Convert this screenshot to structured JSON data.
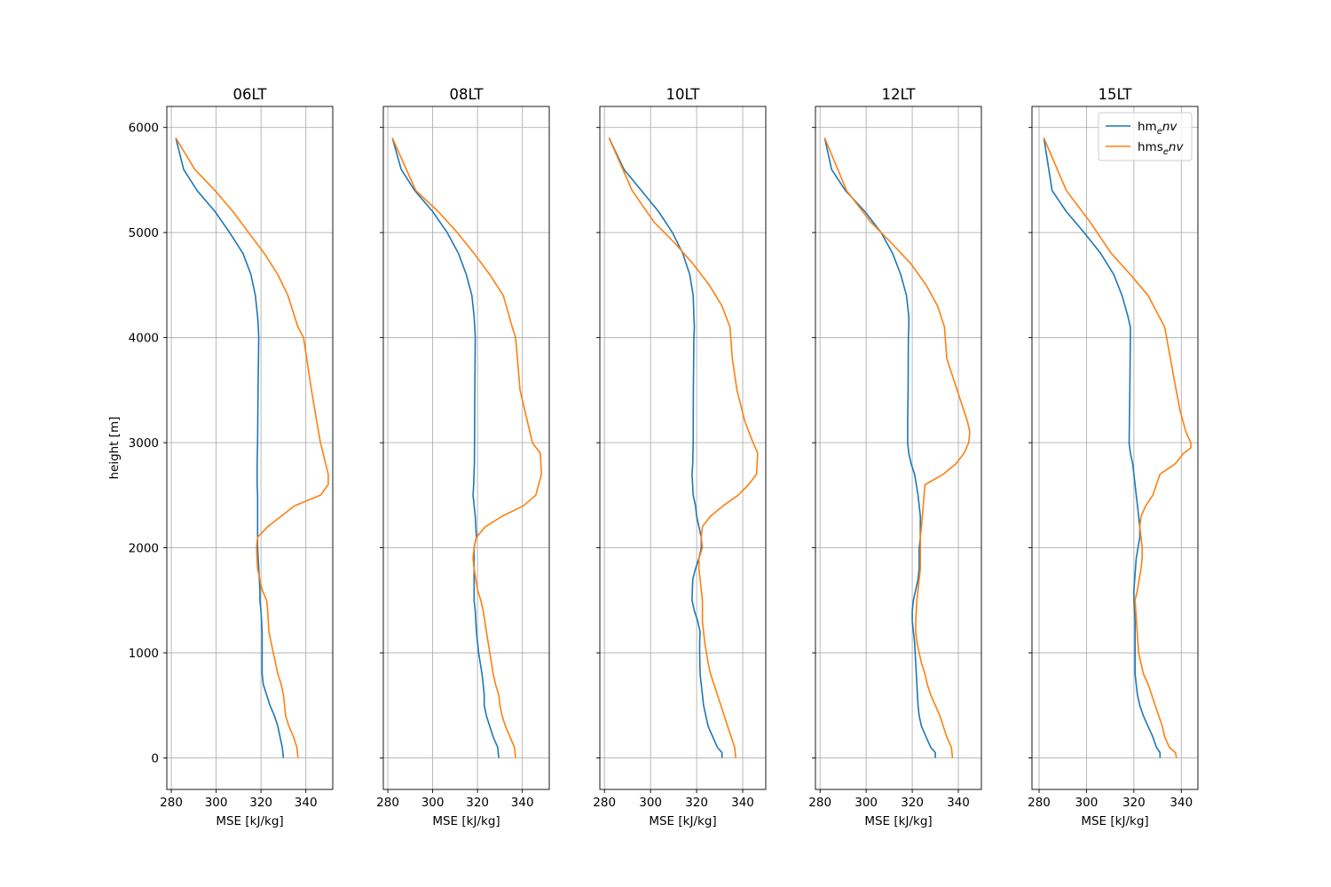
{
  "chart_data": [
    {
      "type": "line",
      "title": "06LT",
      "xlabel": "MSE [kJ/kg]",
      "ylabel": "height [m]",
      "xlim": [
        278,
        352
      ],
      "ylim": [
        -300,
        6200
      ],
      "xticks": [
        280,
        300,
        320,
        340
      ],
      "yticks": [
        0,
        1000,
        2000,
        3000,
        4000,
        5000,
        6000
      ],
      "grid": true,
      "series": [
        {
          "name": "hm_env",
          "color": "#1f77b4",
          "x": [
            330,
            329.5,
            328.5,
            327.5,
            326,
            324,
            322.5,
            321,
            320.5,
            320.5,
            320.5,
            320,
            319.5,
            319.5,
            319,
            318.5,
            318.5,
            318.5,
            318.5,
            318.5,
            318.3,
            318.3,
            318.5,
            318.7,
            319,
            318.8,
            318.5,
            317.5,
            315.5,
            312,
            306,
            299.5,
            291.5,
            285.5,
            282
          ],
          "y": [
            0,
            100,
            200,
            300,
            400,
            500,
            600,
            700,
            800,
            1000,
            1200,
            1400,
            1500,
            1600,
            1800,
            2000,
            2100,
            2200,
            2400,
            2500,
            2600,
            2800,
            3000,
            3500,
            4000,
            4100,
            4200,
            4400,
            4600,
            4800,
            5000,
            5200,
            5400,
            5600,
            5900
          ]
        },
        {
          "name": "hms_env",
          "color": "#ff7f0e",
          "x": [
            336.5,
            336,
            334.5,
            332.5,
            331,
            330.5,
            330,
            329,
            327.5,
            325.5,
            323.5,
            323,
            322.5,
            320.5,
            318.5,
            318,
            318.5,
            323,
            335,
            346.5,
            350,
            350,
            346.5,
            342.5,
            339,
            336.5,
            335,
            332,
            327.5,
            321.5,
            314.5,
            307.5,
            299.5,
            290.5,
            282
          ],
          "y": [
            0,
            100,
            200,
            300,
            400,
            500,
            600,
            700,
            800,
            1000,
            1200,
            1400,
            1500,
            1600,
            1800,
            2000,
            2100,
            2200,
            2400,
            2500,
            2600,
            2700,
            3000,
            3500,
            4000,
            4100,
            4200,
            4400,
            4600,
            4800,
            5000,
            5200,
            5400,
            5600,
            5900
          ]
        }
      ]
    },
    {
      "type": "line",
      "title": "08LT",
      "xlabel": "MSE [kJ/kg]",
      "ylabel": "",
      "xlim": [
        278,
        352
      ],
      "ylim": [
        -300,
        6200
      ],
      "xticks": [
        280,
        300,
        320,
        340
      ],
      "yticks": [
        0,
        1000,
        2000,
        3000,
        4000,
        5000,
        6000
      ],
      "grid": true,
      "series": [
        {
          "name": "hm_env",
          "color": "#1f77b4",
          "x": [
            329.5,
            329,
            327,
            325.5,
            324,
            323,
            323,
            322.5,
            322,
            320.5,
            319.5,
            319,
            318.5,
            318.5,
            318.5,
            318.5,
            318.5,
            319.5,
            319,
            318,
            318.3,
            318.6,
            318.7,
            318.8,
            319,
            318.8,
            318.5,
            317.5,
            315,
            311.5,
            306.5,
            300,
            292,
            286,
            282
          ],
          "y": [
            0,
            100,
            200,
            300,
            400,
            500,
            600,
            700,
            800,
            1000,
            1200,
            1400,
            1500,
            1600,
            1800,
            1900,
            2000,
            2100,
            2300,
            2500,
            2600,
            2800,
            3000,
            3500,
            4000,
            4100,
            4200,
            4400,
            4600,
            4800,
            5000,
            5200,
            5400,
            5600,
            5900
          ]
        },
        {
          "name": "hms_env",
          "color": "#ff7f0e",
          "x": [
            337,
            336.5,
            334.5,
            332.5,
            331,
            330,
            329.5,
            328,
            327,
            325.5,
            324,
            322.5,
            321.5,
            320,
            318.5,
            318,
            318.5,
            319.5,
            323.5,
            331,
            340.5,
            346,
            348.5,
            348,
            344.5,
            339,
            337,
            335.5,
            331.5,
            325.5,
            318.5,
            311,
            302.5,
            292.5,
            282
          ],
          "y": [
            0,
            100,
            200,
            300,
            400,
            500,
            600,
            700,
            800,
            1000,
            1200,
            1400,
            1500,
            1600,
            1800,
            1900,
            2000,
            2100,
            2200,
            2300,
            2400,
            2500,
            2700,
            2900,
            3000,
            3500,
            4000,
            4100,
            4400,
            4600,
            4800,
            5000,
            5200,
            5400,
            5900
          ]
        }
      ]
    },
    {
      "type": "line",
      "title": "10LT",
      "xlabel": "MSE [kJ/kg]",
      "ylabel": "",
      "xlim": [
        278,
        350
      ],
      "ylim": [
        -300,
        6200
      ],
      "xticks": [
        280,
        300,
        320,
        340
      ],
      "yticks": [
        0,
        1000,
        2000,
        3000,
        4000,
        5000,
        6000
      ],
      "grid": true,
      "series": [
        {
          "name": "hm_env",
          "color": "#1f77b4",
          "x": [
            331,
            331,
            329,
            327,
            325,
            324,
            323,
            322.5,
            322,
            321.5,
            321.3,
            321.3,
            321.5,
            320.5,
            319,
            318,
            318.3,
            319.5,
            321,
            322,
            322,
            321,
            320,
            319.5,
            318.5,
            318,
            318.3,
            318.5,
            318.6,
            318.8,
            319,
            318.8,
            318.5,
            317,
            314,
            309.5,
            303.5,
            296,
            288.5,
            282
          ],
          "y": [
            0,
            50,
            100,
            200,
            300,
            400,
            500,
            600,
            700,
            800,
            1000,
            1100,
            1200,
            1300,
            1400,
            1500,
            1700,
            1800,
            1900,
            2000,
            2100,
            2200,
            2300,
            2400,
            2500,
            2700,
            2800,
            3000,
            3500,
            4000,
            4100,
            4200,
            4400,
            4600,
            4800,
            5000,
            5200,
            5400,
            5600,
            5900
          ]
        },
        {
          "name": "hms_env",
          "color": "#ff7f0e",
          "x": [
            337,
            336.5,
            335,
            333.5,
            332,
            330.5,
            329,
            327.5,
            326,
            325,
            323.5,
            322.5,
            322.5,
            322,
            321,
            321,
            322.5,
            322,
            322.5,
            326,
            331.5,
            338,
            342.5,
            346,
            346.5,
            344.5,
            341,
            337.5,
            335.5,
            334.5,
            331,
            325.5,
            318.5,
            310.5,
            301.5,
            292,
            282
          ],
          "y": [
            0,
            100,
            200,
            300,
            400,
            500,
            600,
            700,
            800,
            900,
            1100,
            1300,
            1500,
            1600,
            1800,
            1900,
            2000,
            2100,
            2200,
            2300,
            2400,
            2500,
            2600,
            2700,
            2900,
            3000,
            3200,
            3500,
            3800,
            4100,
            4300,
            4500,
            4700,
            4900,
            5100,
            5400,
            5900
          ]
        }
      ]
    },
    {
      "type": "line",
      "title": "12LT",
      "xlabel": "MSE [kJ/kg]",
      "ylabel": "",
      "xlim": [
        278,
        350
      ],
      "ylim": [
        -300,
        6200
      ],
      "xticks": [
        280,
        300,
        320,
        340
      ],
      "yticks": [
        0,
        1000,
        2000,
        3000,
        4000,
        5000,
        6000
      ],
      "grid": true,
      "series": [
        {
          "name": "hm_env",
          "color": "#1f77b4",
          "x": [
            330,
            330,
            328,
            326,
            324,
            323,
            322.5,
            322,
            321.5,
            321,
            320.5,
            320,
            320,
            320.5,
            321.5,
            322.5,
            323,
            323,
            323,
            323.5,
            323.5,
            322.5,
            321,
            319.5,
            318.5,
            318,
            318,
            318.2,
            318.3,
            318.5,
            318.5,
            317.5,
            315,
            311.5,
            306.5,
            299.5,
            291,
            285,
            282
          ],
          "y": [
            0,
            50,
            100,
            200,
            300,
            400,
            500,
            700,
            900,
            1100,
            1200,
            1300,
            1400,
            1500,
            1600,
            1700,
            1800,
            1900,
            2000,
            2100,
            2300,
            2500,
            2700,
            2800,
            2900,
            3000,
            3200,
            3500,
            4000,
            4100,
            4200,
            4400,
            4600,
            4800,
            5000,
            5200,
            5400,
            5600,
            5900
          ]
        },
        {
          "name": "hms_env",
          "color": "#ff7f0e",
          "x": [
            337.5,
            337,
            335,
            333.5,
            332,
            330,
            328,
            326.5,
            325.5,
            324,
            323,
            322,
            321.5,
            321.5,
            322,
            322.5,
            323,
            323.5,
            323.5,
            323.5,
            323.5,
            324,
            325.5,
            333.5,
            339,
            342.5,
            344.5,
            345,
            344,
            341,
            338,
            335,
            334,
            331,
            326,
            319.5,
            311,
            302,
            291.5,
            282
          ],
          "y": [
            0,
            100,
            200,
            300,
            400,
            500,
            600,
            700,
            800,
            900,
            1000,
            1100,
            1200,
            1300,
            1500,
            1600,
            1700,
            1800,
            1900,
            2000,
            2100,
            2200,
            2600,
            2700,
            2800,
            2900,
            3000,
            3100,
            3200,
            3400,
            3600,
            3800,
            4100,
            4300,
            4500,
            4700,
            4900,
            5100,
            5400,
            5900
          ]
        }
      ]
    },
    {
      "type": "line",
      "title": "15LT",
      "xlabel": "MSE [kJ/kg]",
      "ylabel": "",
      "xlim": [
        277,
        347
      ],
      "ylim": [
        -300,
        6200
      ],
      "xticks": [
        280,
        300,
        320,
        340
      ],
      "yticks": [
        0,
        1000,
        2000,
        3000,
        4000,
        5000,
        6000
      ],
      "grid": true,
      "legend": {
        "position": "top-right",
        "entries": [
          "hm$_env$",
          "hms$_env$"
        ]
      },
      "series": [
        {
          "name": "hm_env",
          "color": "#1f77b4",
          "x": [
            331,
            331,
            329.5,
            328,
            326,
            324,
            322.5,
            321.5,
            321,
            320.5,
            320.5,
            320.5,
            320,
            320,
            321,
            322.5,
            322.5,
            322,
            321.5,
            321,
            320.5,
            319.5,
            318.5,
            318,
            318.3,
            318.5,
            318.5,
            317.5,
            315,
            311.5,
            306,
            299,
            291.5,
            285.5,
            282
          ],
          "y": [
            0,
            50,
            100,
            200,
            300,
            400,
            500,
            600,
            700,
            800,
            1000,
            1300,
            1500,
            1600,
            1900,
            2100,
            2200,
            2300,
            2400,
            2500,
            2600,
            2800,
            2900,
            3000,
            3500,
            4000,
            4100,
            4200,
            4400,
            4600,
            4800,
            5000,
            5200,
            5400,
            5900
          ]
        },
        {
          "name": "hms_env",
          "color": "#ff7f0e",
          "x": [
            338,
            337.5,
            335,
            333,
            332,
            330.5,
            329,
            327.5,
            326,
            324,
            322,
            320.5,
            321.5,
            323,
            323.5,
            323.5,
            323,
            322.5,
            323,
            325,
            328,
            331,
            337.5,
            341,
            344,
            344,
            342,
            339.5,
            337,
            333,
            326,
            318.5,
            310.5,
            301.5,
            291.5,
            282
          ],
          "y": [
            0,
            50,
            100,
            200,
            300,
            400,
            500,
            600,
            700,
            800,
            1000,
            1500,
            1600,
            1800,
            1900,
            2000,
            2100,
            2200,
            2300,
            2400,
            2500,
            2700,
            2800,
            2900,
            2950,
            3000,
            3100,
            3300,
            3600,
            4100,
            4400,
            4600,
            4800,
            5100,
            5400,
            5900
          ]
        }
      ]
    }
  ]
}
